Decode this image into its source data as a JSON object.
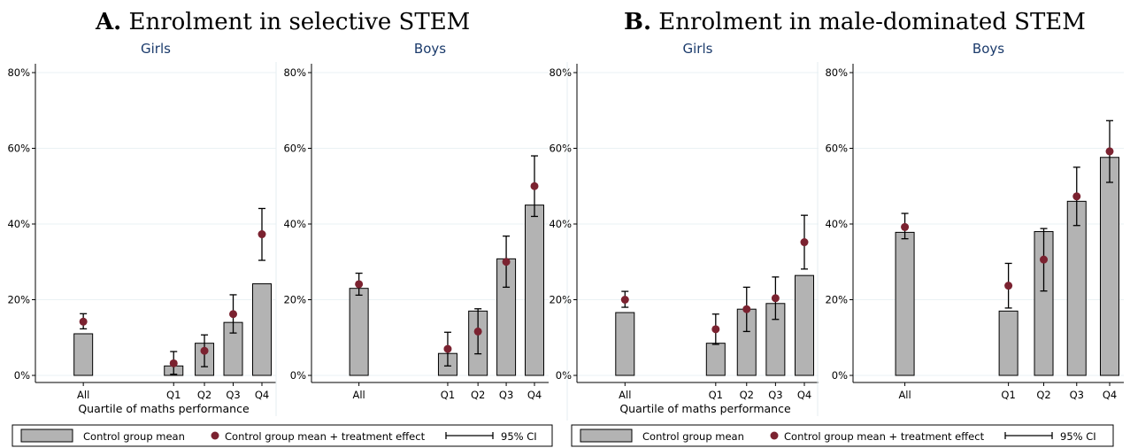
{
  "panels": [
    {
      "letter": "A.",
      "title": "Enrolment in selective STEM"
    },
    {
      "letter": "B.",
      "title": "Enrolment in male-dominated STEM"
    }
  ],
  "legend": {
    "bar_label": "Control group mean",
    "dot_label": "Control group mean + treatment effect",
    "ci_label": "95% CI"
  },
  "colors": {
    "bar_fill": "#b3b3b3",
    "dot": "#7b2230",
    "subtitle": "#1a3a6b",
    "grid": "#eaf1f4"
  },
  "chart_data": [
    {
      "type": "bar",
      "panel": "A",
      "facet": "Girls",
      "xlabel": "Quartile of maths performance",
      "ylim": [
        0,
        80
      ],
      "yticks": [
        "0%",
        "20%",
        "40%",
        "60%",
        "80%"
      ],
      "categories": [
        "All",
        "Q1",
        "Q2",
        "Q3",
        "Q4"
      ],
      "control_mean": [
        11,
        2.5,
        8.5,
        14,
        24.2
      ],
      "treatment": [
        14.2,
        3.2,
        6.5,
        16.2,
        37.3
      ],
      "ci": [
        [
          12.3,
          16.3
        ],
        [
          0.3,
          6.3
        ],
        [
          2.3,
          10.7
        ],
        [
          11.2,
          21.3
        ],
        [
          30.4,
          44.1
        ]
      ]
    },
    {
      "type": "bar",
      "panel": "A",
      "facet": "Boys",
      "xlabel": "Quartile of maths performance",
      "ylim": [
        0,
        80
      ],
      "yticks": [
        "0%",
        "20%",
        "40%",
        "60%",
        "80%"
      ],
      "categories": [
        "All",
        "Q1",
        "Q2",
        "Q3",
        "Q4"
      ],
      "control_mean": [
        23,
        5.8,
        17,
        30.8,
        45
      ],
      "treatment": [
        24.1,
        7,
        11.6,
        30,
        50
      ],
      "ci": [
        [
          21.2,
          27
        ],
        [
          2.5,
          11.4
        ],
        [
          5.7,
          17.6
        ],
        [
          23.3,
          36.8
        ],
        [
          42,
          58
        ]
      ]
    },
    {
      "type": "bar",
      "panel": "B",
      "facet": "Girls",
      "xlabel": "Quartile of maths performance",
      "ylim": [
        0,
        80
      ],
      "yticks": [
        "0%",
        "20%",
        "40%",
        "60%",
        "80%"
      ],
      "categories": [
        "All",
        "Q1",
        "Q2",
        "Q3",
        "Q4"
      ],
      "control_mean": [
        16.6,
        8.5,
        17.5,
        19,
        26.4
      ],
      "treatment": [
        20,
        12.2,
        17.5,
        20.4,
        35.2
      ],
      "ci": [
        [
          18,
          22.2
        ],
        [
          8.2,
          16.2
        ],
        [
          11.6,
          23.3
        ],
        [
          14.8,
          26
        ],
        [
          28.1,
          42.3
        ]
      ]
    },
    {
      "type": "bar",
      "panel": "B",
      "facet": "Boys",
      "xlabel": "Quartile of maths performance",
      "ylim": [
        0,
        80
      ],
      "yticks": [
        "0%",
        "20%",
        "40%",
        "60%",
        "80%"
      ],
      "categories": [
        "All",
        "Q1",
        "Q2",
        "Q3",
        "Q4"
      ],
      "control_mean": [
        37.8,
        17,
        38,
        46,
        57.6
      ],
      "treatment": [
        39.2,
        23.7,
        30.6,
        47.3,
        59.2
      ],
      "ci": [
        [
          36.1,
          42.8
        ],
        [
          17.8,
          29.6
        ],
        [
          22.3,
          38.8
        ],
        [
          39.6,
          55
        ],
        [
          51,
          67.3
        ]
      ]
    }
  ]
}
